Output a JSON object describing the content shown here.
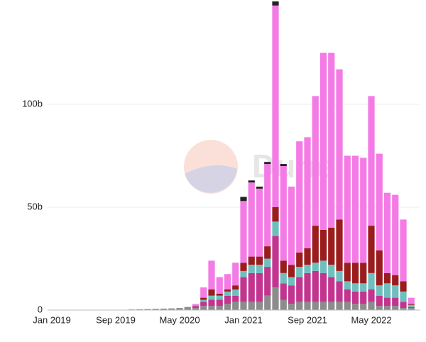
{
  "chart_data": {
    "type": "stacked-bar",
    "watermark": "Dune",
    "categories": [
      "Jan 2019",
      null,
      null,
      null,
      null,
      null,
      null,
      null,
      "Sep 2019",
      null,
      null,
      null,
      null,
      null,
      null,
      null,
      "May 2020",
      null,
      null,
      null,
      null,
      null,
      null,
      null,
      "Jan 2021",
      null,
      null,
      null,
      null,
      null,
      null,
      null,
      "Sep 2021",
      null,
      null,
      null,
      null,
      null,
      null,
      null,
      "May 2022",
      null,
      null,
      null,
      null,
      null
    ],
    "series": [
      {
        "color": "#8c8c8c",
        "values": [
          0.1,
          0.1,
          0.1,
          0.1,
          0.1,
          0.1,
          0.1,
          0.1,
          0.1,
          0.1,
          0.3,
          0.4,
          0.5,
          0.6,
          0.7,
          0.8,
          1,
          1.5,
          1,
          2,
          2,
          2,
          3,
          4,
          4,
          4,
          4,
          7,
          11,
          5,
          3,
          4,
          4,
          4,
          4,
          4,
          4,
          4,
          3,
          3,
          4,
          2,
          2,
          2,
          1,
          1
        ]
      },
      {
        "color": "#c2348f",
        "values": [
          0,
          0,
          0,
          0,
          0,
          0,
          0,
          0,
          0,
          0,
          0,
          0,
          0,
          0,
          0,
          0,
          0,
          0,
          1,
          2,
          3,
          3,
          4,
          3,
          12,
          14,
          14,
          14,
          25,
          8,
          9,
          12,
          14,
          15,
          14,
          12,
          10,
          6,
          6,
          6,
          6,
          5,
          4,
          4,
          3,
          0.5
        ]
      },
      {
        "color": "#6fbfbf",
        "values": [
          0,
          0,
          0,
          0,
          0,
          0,
          0,
          0,
          0,
          0,
          0,
          0,
          0,
          0,
          0,
          0,
          0,
          0,
          0.5,
          1,
          2,
          2,
          2,
          3,
          3,
          4,
          4,
          4,
          7,
          5,
          4,
          5,
          4,
          4,
          6,
          6,
          5,
          4,
          4,
          4,
          8,
          5,
          7,
          6,
          5,
          1
        ]
      },
      {
        "color": "#9b1c1c",
        "values": [
          0,
          0,
          0,
          0,
          0,
          0,
          0,
          0,
          0,
          0,
          0,
          0,
          0,
          0,
          0,
          0,
          0,
          0,
          0,
          1,
          3,
          1,
          1,
          2,
          4,
          4,
          4,
          6,
          7,
          6,
          6,
          7,
          8,
          18,
          15,
          18,
          25,
          9,
          10,
          10,
          23,
          17,
          5,
          5,
          5,
          0.5
        ]
      },
      {
        "color": "#f47ae5",
        "values": [
          0,
          0,
          0,
          0,
          0,
          0,
          0,
          0,
          0,
          0,
          0,
          0,
          0,
          0,
          0,
          0,
          0,
          0,
          0.5,
          5,
          14,
          8,
          7.5,
          11,
          30,
          36,
          33,
          40,
          98,
          46,
          38,
          54,
          54,
          63,
          86,
          85,
          73,
          52,
          52,
          51,
          63,
          47,
          39,
          39,
          30,
          3
        ]
      },
      {
        "color": "#222222",
        "values": [
          0,
          0,
          0,
          0,
          0,
          0,
          0,
          0,
          0,
          0,
          0,
          0,
          0,
          0,
          0,
          0,
          0,
          0,
          0,
          0,
          0,
          0,
          0,
          0,
          2,
          1,
          1,
          1,
          2,
          1,
          0,
          0,
          0,
          0,
          0,
          0,
          0,
          0,
          0,
          0,
          0,
          0,
          0,
          0,
          0,
          0
        ]
      }
    ],
    "ylim": [
      0,
      150
    ],
    "yticks": [
      0,
      {
        "value": 50,
        "label": "50b"
      },
      {
        "value": 100,
        "label": "100b"
      }
    ],
    "grid": true
  }
}
